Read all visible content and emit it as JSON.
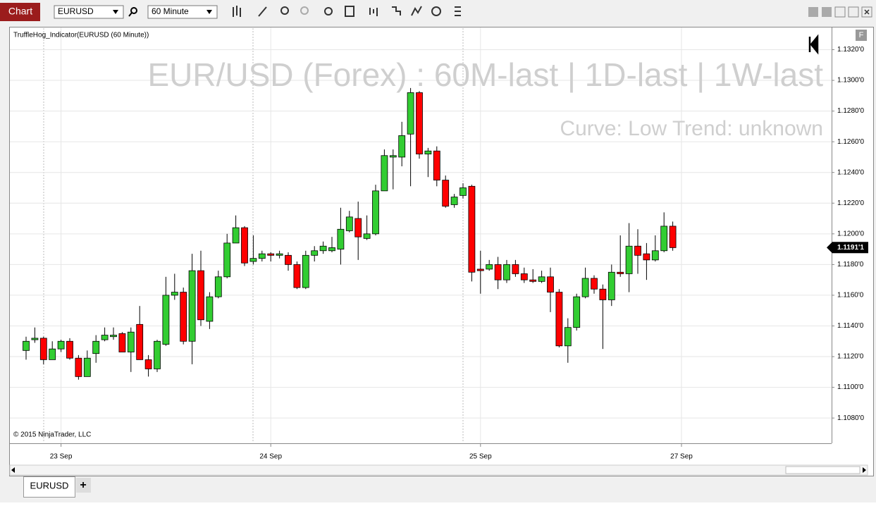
{
  "window": {
    "title": "Chart",
    "instrument": "EURUSD",
    "interval": "60 Minute",
    "badge": "F"
  },
  "tabs": [
    "EURUSD",
    "+"
  ],
  "chart_data": {
    "type": "candlestick",
    "title": "EUR/USD (Forex) : 60M-last | 1D-last | 1W-last",
    "subtitle": "Curve: Low Trend: unknown",
    "indicator_label": "TruffleHog_Indicator(EURUSD (60 Minute))",
    "copyright": "© 2015 NinjaTrader, LLC",
    "up_color": "#32cd32",
    "down_color": "#ff0000",
    "grid": true,
    "categories": [
      null,
      null,
      null,
      null,
      "23 Sep",
      null,
      null,
      null,
      null,
      null,
      null,
      null,
      null,
      null,
      null,
      null,
      null,
      null,
      null,
      null,
      null,
      null,
      null,
      null,
      null,
      null,
      null,
      null,
      "24 Sep",
      null,
      null,
      null,
      null,
      null,
      null,
      null,
      null,
      null,
      null,
      null,
      null,
      null,
      null,
      null,
      null,
      null,
      null,
      null,
      null,
      null,
      null,
      null,
      "25 Sep",
      null,
      null,
      null,
      null,
      null,
      null,
      null,
      null,
      null,
      null,
      null,
      null,
      null,
      null,
      null,
      null,
      null,
      null,
      null,
      null,
      null,
      null,
      "27 Sep"
    ],
    "open": [
      1.1124,
      1.1131,
      1.1132,
      1.1118,
      1.1125,
      1.113,
      1.1119,
      1.1107,
      1.1122,
      1.1131,
      1.1133,
      1.1135,
      1.1123,
      1.1141,
      1.1118,
      1.1112,
      1.1128,
      1.116,
      1.1162,
      1.113,
      1.1176,
      1.1143,
      1.1159,
      1.1172,
      1.1194,
      1.1204,
      1.1182,
      1.1184,
      1.1187,
      1.1186,
      1.1186,
      1.118,
      1.1165,
      1.1186,
      1.1189,
      1.1189,
      1.119,
      1.1202,
      1.121,
      1.1197,
      1.12,
      1.1228,
      1.125,
      1.125,
      1.1265,
      1.1292,
      1.1252,
      1.1254,
      1.1235,
      1.1219,
      1.1225,
      1.1231,
      1.1177,
      1.1177,
      1.118,
      1.117,
      1.118,
      1.1174,
      1.117,
      1.1169,
      1.1172,
      1.1162,
      1.1127,
      1.1139,
      1.1159,
      1.1171,
      1.1164,
      1.1157,
      1.1175,
      1.1174,
      1.1192,
      1.1187,
      1.1183,
      1.1189,
      1.1205,
      null
    ],
    "high": [
      1.1133,
      1.1139,
      1.1133,
      1.113,
      1.1131,
      1.1132,
      1.1121,
      1.1124,
      1.1134,
      1.1139,
      1.1139,
      1.1136,
      1.1139,
      1.1153,
      1.1121,
      1.1131,
      1.1172,
      1.1174,
      1.1165,
      1.1187,
      1.1189,
      1.1162,
      1.1176,
      1.12,
      1.1212,
      1.1205,
      1.1199,
      1.1189,
      1.1188,
      1.1189,
      1.1188,
      1.1182,
      1.1189,
      1.1192,
      1.1195,
      1.1198,
      1.1217,
      1.1215,
      1.1221,
      1.1212,
      1.1232,
      1.1255,
      1.1255,
      1.1273,
      1.1295,
      1.1293,
      1.1256,
      1.1257,
      1.1238,
      1.1226,
      1.1233,
      1.1232,
      1.1189,
      1.1183,
      1.1185,
      1.1183,
      1.1183,
      1.1178,
      1.1177,
      1.1176,
      1.1178,
      1.1164,
      1.1145,
      1.1161,
      1.1178,
      1.1173,
      1.1167,
      1.118,
      1.1199,
      1.1207,
      1.1203,
      1.1194,
      1.1199,
      1.1214,
      1.1208,
      null
    ],
    "low": [
      1.1118,
      1.1129,
      1.1115,
      1.1118,
      1.1123,
      1.1118,
      1.1105,
      1.1107,
      1.1116,
      1.113,
      1.1131,
      1.1123,
      1.111,
      1.1118,
      1.1107,
      1.111,
      1.1127,
      1.1157,
      1.1128,
      1.1115,
      1.114,
      1.1138,
      1.1158,
      1.1171,
      1.1194,
      1.1179,
      1.118,
      1.1182,
      1.1182,
      1.1184,
      1.1176,
      1.1164,
      1.1164,
      1.1182,
      1.1187,
      1.1188,
      1.118,
      1.1201,
      1.1183,
      1.1196,
      1.1199,
      1.1228,
      1.1229,
      1.1244,
      1.1231,
      1.1249,
      1.1237,
      1.1231,
      1.1217,
      1.1217,
      1.1223,
      1.1169,
      1.1161,
      1.1176,
      1.1164,
      1.1168,
      1.1172,
      1.1168,
      1.1168,
      1.1168,
      1.1149,
      1.1126,
      1.1116,
      1.1137,
      1.1158,
      1.1161,
      1.1125,
      1.1153,
      1.1172,
      1.1162,
      1.1174,
      1.117,
      1.1182,
      1.1188,
      1.1189,
      null
    ],
    "close": [
      1.113,
      1.1132,
      1.1118,
      1.1125,
      1.113,
      1.1119,
      1.1107,
      1.1119,
      1.113,
      1.1134,
      1.1134,
      1.1123,
      1.1136,
      1.1118,
      1.1112,
      1.113,
      1.116,
      1.1162,
      1.113,
      1.1176,
      1.1144,
      1.1159,
      1.1172,
      1.1194,
      1.1204,
      1.1181,
      1.1184,
      1.1187,
      1.1186,
      1.1187,
      1.118,
      1.1165,
      1.1186,
      1.1189,
      1.1192,
      1.1191,
      1.1203,
      1.1211,
      1.1198,
      1.12,
      1.1228,
      1.1251,
      1.1251,
      1.1264,
      1.1292,
      1.1252,
      1.1254,
      1.1235,
      1.1218,
      1.1224,
      1.123,
      1.1175,
      1.1176,
      1.118,
      1.117,
      1.118,
      1.1174,
      1.117,
      1.1169,
      1.1172,
      1.1162,
      1.1127,
      1.1139,
      1.1159,
      1.1171,
      1.1164,
      1.1157,
      1.1175,
      1.1174,
      1.1192,
      1.1186,
      1.1183,
      1.1189,
      1.1205,
      1.1191,
      null
    ],
    "last_price": {
      "value": 1.11911,
      "label": "1.1191'1"
    },
    "ylim": [
      1.1064,
      1.1334
    ],
    "yticks": [
      {
        "value": 1.108,
        "label": "1.1080'0"
      },
      {
        "value": 1.11,
        "label": "1.1100'0"
      },
      {
        "value": 1.112,
        "label": "1.1120'0"
      },
      {
        "value": 1.114,
        "label": "1.1140'0"
      },
      {
        "value": 1.116,
        "label": "1.1160'0"
      },
      {
        "value": 1.118,
        "label": "1.1180'0"
      },
      {
        "value": 1.12,
        "label": "1.1200'0"
      },
      {
        "value": 1.122,
        "label": "1.1220'0"
      },
      {
        "value": 1.124,
        "label": "1.1240'0"
      },
      {
        "value": 1.126,
        "label": "1.1260'0"
      },
      {
        "value": 1.128,
        "label": "1.1280'0"
      },
      {
        "value": 1.13,
        "label": "1.1300'0"
      },
      {
        "value": 1.132,
        "label": "1.1320'0"
      }
    ]
  }
}
